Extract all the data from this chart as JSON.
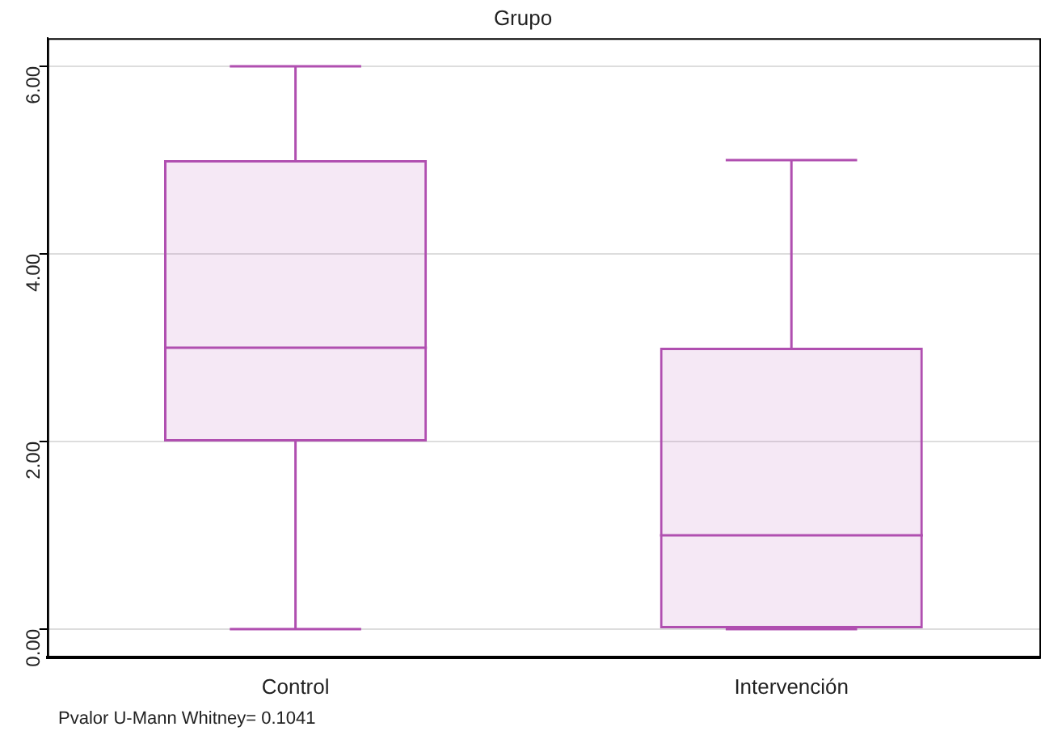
{
  "chart_data": {
    "type": "box",
    "title": "Grupo",
    "categories": [
      "Control",
      "Intervención"
    ],
    "boxes": [
      {
        "low": 0,
        "q1": 2,
        "median": 3,
        "q3": 5,
        "high": 6
      },
      {
        "low": 0,
        "q1": 0,
        "median": 1,
        "q3": 3,
        "high": 5
      }
    ],
    "color": "#b04fb0",
    "ylim": [
      -0.3,
      6.3
    ],
    "yticks": [
      {
        "value": 0,
        "label": "0.00"
      },
      {
        "value": 2,
        "label": "2.00"
      },
      {
        "value": 4,
        "label": "4.00"
      },
      {
        "value": 6,
        "label": "6.00"
      }
    ],
    "grid": "y",
    "legend": false,
    "annotations": [
      "Pvalor U-Mann Whitney= 0.1041"
    ]
  }
}
